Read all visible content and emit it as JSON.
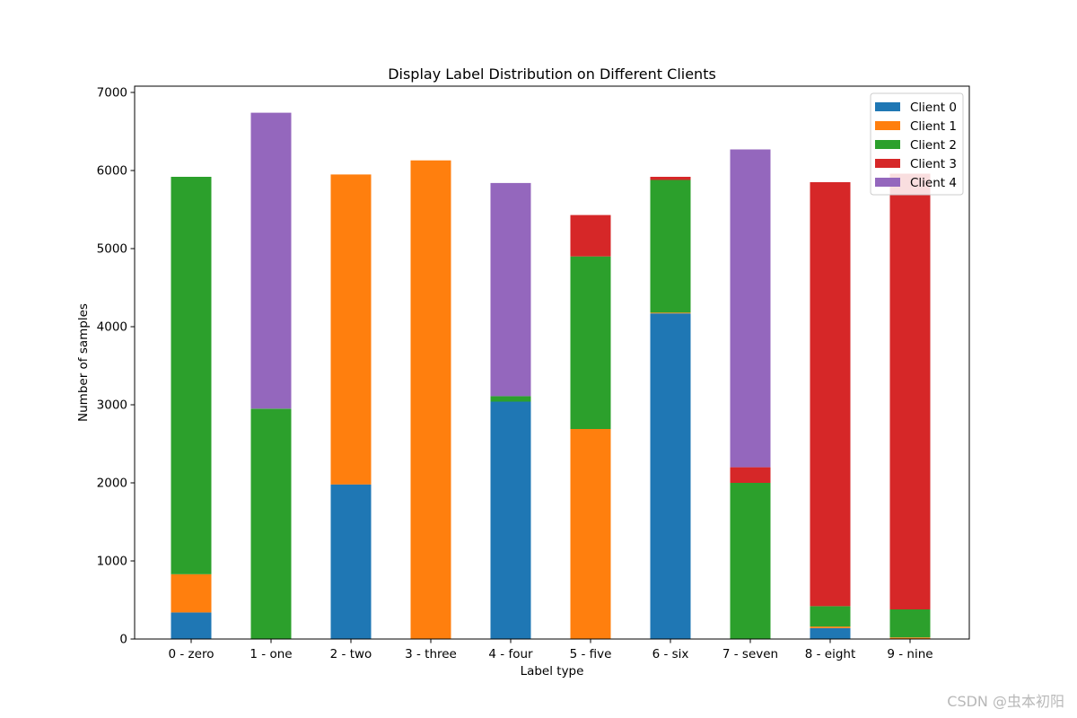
{
  "chart_data": {
    "type": "bar",
    "stacked": true,
    "title": "Display Label Distribution on Different Clients",
    "xlabel": "Label type",
    "ylabel": "Number of samples",
    "ylim": [
      0,
      7000
    ],
    "yticks": [
      0,
      1000,
      2000,
      3000,
      4000,
      5000,
      6000,
      7000
    ],
    "legend_position": "top-right",
    "categories": [
      "0 - zero",
      "1 - one",
      "2 - two",
      "3 - three",
      "4 - four",
      "5 - five",
      "6 - six",
      "7 - seven",
      "8 - eight",
      "9 - nine"
    ],
    "series": [
      {
        "name": "Client 0",
        "color": "#1f77b4",
        "values": [
          340,
          0,
          1980,
          0,
          3040,
          0,
          4170,
          0,
          140,
          0
        ]
      },
      {
        "name": "Client 1",
        "color": "#ff7f0e",
        "values": [
          490,
          0,
          3970,
          6130,
          0,
          2690,
          10,
          0,
          20,
          20
        ]
      },
      {
        "name": "Client 2",
        "color": "#2ca02c",
        "values": [
          5090,
          2950,
          0,
          0,
          70,
          2210,
          1700,
          2000,
          260,
          360
        ]
      },
      {
        "name": "Client 3",
        "color": "#d62728",
        "values": [
          0,
          0,
          0,
          0,
          0,
          530,
          40,
          200,
          5430,
          5580
        ]
      },
      {
        "name": "Client 4",
        "color": "#9467bd",
        "values": [
          0,
          3790,
          0,
          0,
          2730,
          0,
          0,
          4070,
          0,
          0
        ]
      }
    ]
  },
  "watermark": "CSDN @虫本初阳"
}
